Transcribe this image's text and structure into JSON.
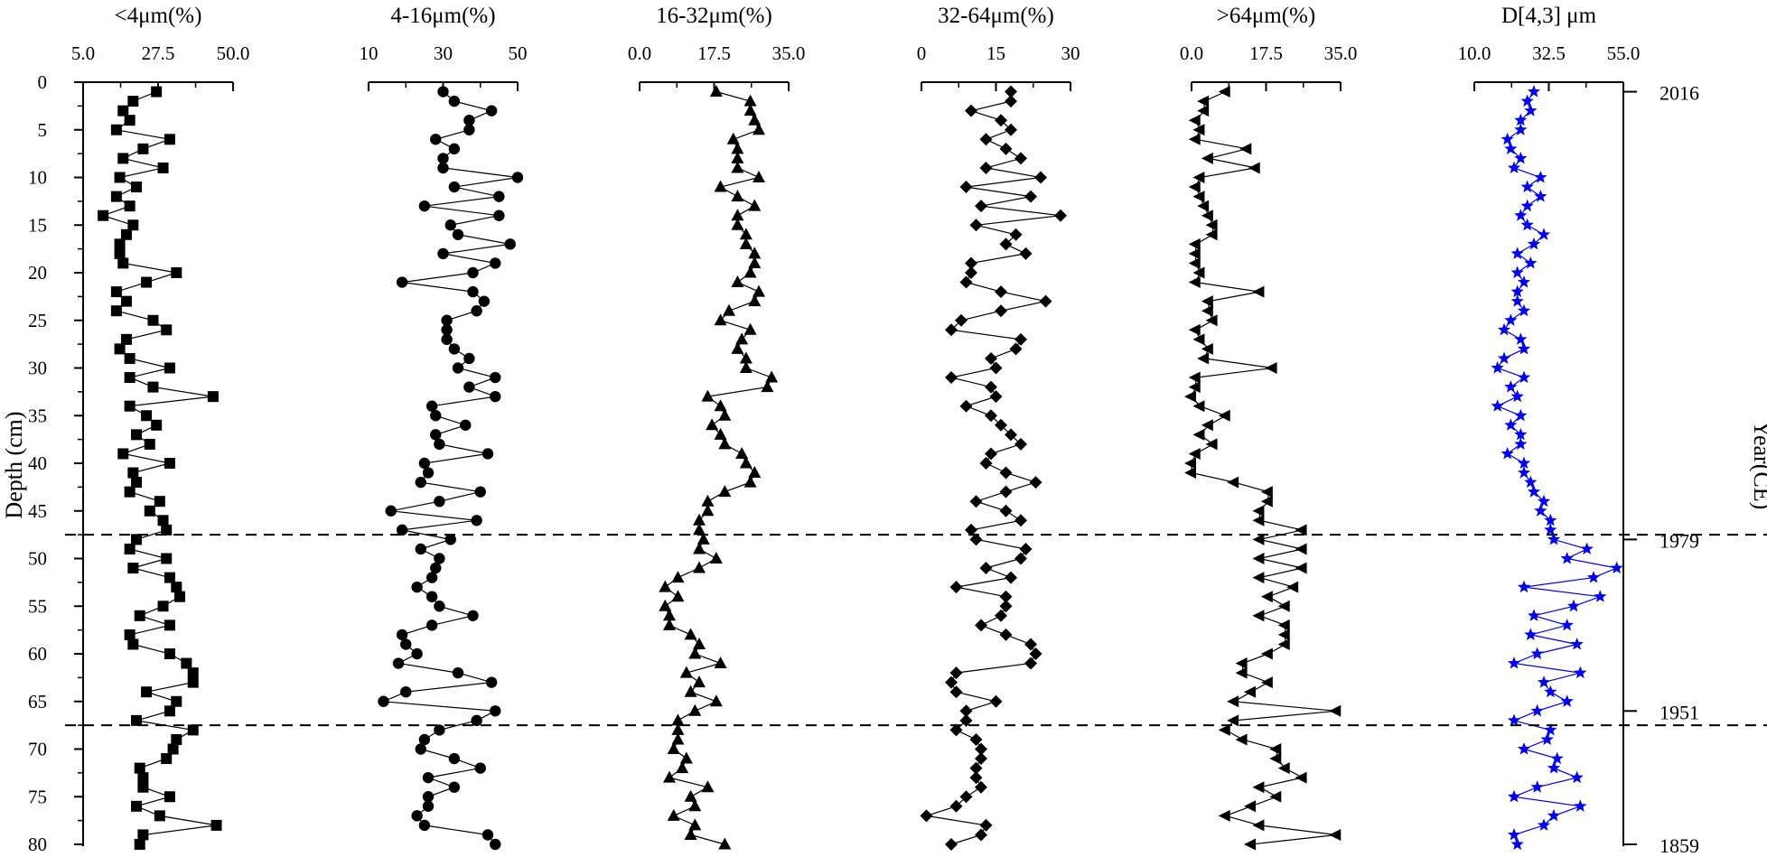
{
  "chart_data": {
    "type": "line",
    "depth_axis": {
      "label": "Depth (cm)",
      "range": [
        0,
        80
      ],
      "ticks": [
        "0",
        "5",
        "10",
        "15",
        "20",
        "25",
        "30",
        "35",
        "40",
        "45",
        "50",
        "55",
        "60",
        "65",
        "70",
        "75",
        "80"
      ]
    },
    "year_axis": {
      "label": "Year(CE)",
      "marks": [
        {
          "depth": 1,
          "label": "2016"
        },
        {
          "depth": 48,
          "label": "1979"
        },
        {
          "depth": 66,
          "label": "1951"
        },
        {
          "depth": 80,
          "label": "1859"
        }
      ]
    },
    "boundaries": [
      47.5,
      67.5
    ],
    "depth": [
      1,
      2,
      3,
      4,
      5,
      6,
      7,
      8,
      9,
      10,
      11,
      12,
      13,
      14,
      15,
      16,
      17,
      18,
      19,
      20,
      21,
      22,
      23,
      24,
      25,
      26,
      27,
      28,
      29,
      30,
      31,
      32,
      33,
      34,
      35,
      36,
      37,
      38,
      39,
      40,
      41,
      42,
      43,
      44,
      45,
      46,
      47,
      48,
      49,
      50,
      51,
      52,
      53,
      54,
      55,
      56,
      57,
      58,
      59,
      60,
      61,
      62,
      63,
      64,
      65,
      66,
      67,
      68,
      69,
      70,
      71,
      72,
      73,
      74,
      75,
      76,
      77,
      78,
      79,
      80
    ],
    "panels": [
      {
        "title": "<4μm(%)",
        "xlim": [
          5,
          50
        ],
        "ticks": [
          "5.0",
          "27.5",
          "50.0"
        ],
        "marker": "square",
        "color": "#000000",
        "values": [
          27,
          20,
          17,
          19,
          15,
          31,
          23,
          17,
          29,
          16,
          21,
          15,
          19,
          11,
          20,
          18,
          16,
          16,
          17,
          33,
          24,
          15,
          18,
          15,
          26,
          30,
          18,
          16,
          19,
          31,
          19,
          26,
          44,
          19,
          24,
          27,
          21,
          25,
          17,
          31,
          20,
          21,
          19,
          28,
          25,
          29,
          30,
          21,
          19,
          30,
          20,
          31,
          33,
          34,
          29,
          22,
          31,
          19,
          20,
          31,
          36,
          38,
          38,
          24,
          33,
          31,
          21,
          38,
          33,
          32,
          30,
          22,
          23,
          23,
          31,
          21,
          28,
          45,
          23,
          22
        ]
      },
      {
        "title": "4-16μm(%)",
        "xlim": [
          10,
          50
        ],
        "ticks": [
          "10",
          "30",
          "50"
        ],
        "marker": "circle",
        "color": "#000000",
        "values": [
          30,
          33,
          43,
          37,
          37,
          28,
          33,
          30,
          30,
          50,
          33,
          45,
          25,
          45,
          32,
          34,
          48,
          30,
          44,
          38,
          19,
          38,
          41,
          39,
          31,
          31,
          31,
          33,
          37,
          34,
          44,
          37,
          44,
          27,
          28,
          36,
          28,
          29,
          42,
          25,
          26,
          24,
          40,
          29,
          16,
          39,
          19,
          32,
          24,
          29,
          28,
          27,
          23,
          27,
          29,
          38,
          27,
          19,
          20,
          23,
          18,
          34,
          43,
          20,
          14,
          44,
          39,
          29,
          25,
          24,
          33,
          40,
          26,
          33,
          26,
          26,
          23,
          25,
          42,
          44
        ]
      },
      {
        "title": "16-32μm(%)",
        "xlim": [
          0,
          35
        ],
        "ticks": [
          "0.0",
          "17.5",
          "35.0"
        ],
        "marker": "triangle",
        "color": "#000000",
        "values": [
          18,
          26,
          26,
          27,
          28,
          22,
          23,
          23,
          23,
          28,
          19,
          23,
          27,
          23,
          23,
          25,
          25,
          27,
          27,
          26,
          23,
          28,
          27,
          21,
          19,
          26,
          24,
          23,
          25,
          25,
          31,
          30,
          16,
          19,
          20,
          17,
          19,
          20,
          24,
          25,
          27,
          26,
          20,
          16,
          16,
          14,
          14,
          15,
          14,
          18,
          14,
          9,
          6,
          9,
          6,
          7,
          7,
          12,
          14,
          13,
          19,
          11,
          14,
          12,
          18,
          13,
          9,
          9,
          9,
          8,
          11,
          10,
          7,
          16,
          12,
          13,
          8,
          13,
          12,
          20
        ]
      },
      {
        "title": "32-64μm(%)",
        "xlim": [
          0,
          30
        ],
        "ticks": [
          "0",
          "15",
          "30"
        ],
        "marker": "diamond",
        "color": "#000000",
        "values": [
          18,
          18,
          10,
          16,
          18,
          13,
          17,
          20,
          13,
          24,
          9,
          22,
          12,
          28,
          11,
          19,
          17,
          21,
          10,
          10,
          9,
          16,
          25,
          16,
          8,
          6,
          20,
          19,
          14,
          15,
          6,
          14,
          15,
          9,
          14,
          16,
          18,
          20,
          14,
          13,
          17,
          23,
          17,
          11,
          17,
          20,
          10,
          11,
          21,
          20,
          13,
          18,
          7,
          17,
          17,
          16,
          12,
          17,
          22,
          23,
          22,
          7,
          6,
          7,
          15,
          9,
          9,
          7,
          11,
          12,
          12,
          11,
          11,
          12,
          9,
          7,
          1,
          13,
          12,
          6
        ]
      },
      {
        "title": ">64μm(%)",
        "xlim": [
          0,
          35
        ],
        "ticks": [
          "0.0",
          "17.5",
          "35.0"
        ],
        "marker": "arrow",
        "color": "#000000",
        "values": [
          8,
          3,
          3,
          1,
          2,
          1,
          13,
          4,
          15,
          2,
          1,
          2,
          3,
          4,
          5,
          5,
          1,
          1,
          1,
          2,
          1,
          16,
          4,
          4,
          5,
          1,
          2,
          4,
          3,
          19,
          1,
          1,
          0,
          2,
          8,
          4,
          2,
          5,
          1,
          0,
          0,
          10,
          18,
          18,
          16,
          16,
          26,
          16,
          26,
          16,
          26,
          16,
          24,
          18,
          22,
          16,
          22,
          22,
          22,
          18,
          12,
          12,
          18,
          14,
          10,
          34,
          10,
          8,
          12,
          20,
          20,
          22,
          26,
          16,
          20,
          14,
          8,
          16,
          34,
          14
        ]
      },
      {
        "title": "D[4,3] μm",
        "xlim": [
          10,
          55
        ],
        "ticks": [
          "10.0",
          "32.5",
          "55.0"
        ],
        "marker": "star",
        "color": "#0000ee",
        "values": [
          28,
          26,
          27,
          24,
          24,
          20,
          21,
          24,
          22,
          30,
          26,
          30,
          26,
          24,
          26,
          31,
          28,
          23,
          27,
          23,
          25,
          23,
          23,
          25,
          21,
          19,
          24,
          25,
          19,
          17,
          25,
          21,
          23,
          17,
          24,
          21,
          24,
          24,
          20,
          25,
          25,
          27,
          28,
          31,
          30,
          33,
          33,
          34,
          44,
          38,
          53,
          46,
          25,
          48,
          40,
          28,
          38,
          27,
          41,
          29,
          22,
          42,
          31,
          33,
          38,
          29,
          22,
          33,
          32,
          25,
          35,
          34,
          41,
          29,
          22,
          42,
          34,
          31,
          22,
          23
        ]
      }
    ]
  }
}
